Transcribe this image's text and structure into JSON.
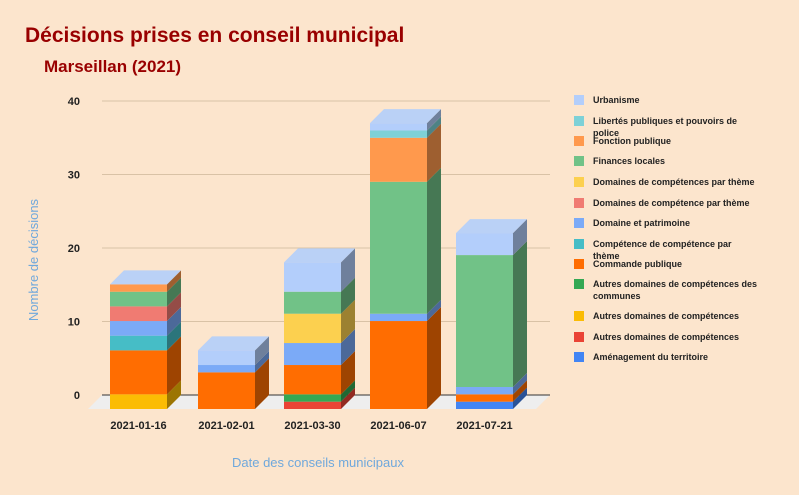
{
  "chart_data": {
    "type": "bar",
    "stacked": true,
    "three_d": true,
    "title": "Décisions prises en conseil municipal",
    "subtitle": "Marseillan (2021)",
    "xlabel": "Date des conseils municipaux",
    "ylabel": "Nombre de décisions",
    "ylim": [
      0,
      40
    ],
    "yticks": [
      "0",
      "10",
      "20",
      "30",
      "40"
    ],
    "grid": true,
    "legend_position": "right",
    "categories": [
      "2021-01-16",
      "2021-02-01",
      "2021-03-30",
      "2021-06-07",
      "2021-07-21"
    ],
    "series": [
      {
        "name": "Aménagement du territoire",
        "color": "#4285f4",
        "values": [
          0,
          0,
          0,
          0,
          1
        ]
      },
      {
        "name": "Autres domaines de compétences",
        "color": "#ea4335",
        "values": [
          0,
          0,
          1,
          0,
          0
        ]
      },
      {
        "name": "Autres domaines de compétences",
        "color": "#fbbc04",
        "values": [
          2,
          0,
          0,
          0,
          0
        ]
      },
      {
        "name": "Autres domaines de compétences des communes",
        "color": "#34a853",
        "values": [
          0,
          0,
          1,
          0,
          0
        ]
      },
      {
        "name": "Commande publique",
        "color": "#ff6d01",
        "values": [
          6,
          5,
          4,
          12,
          1
        ]
      },
      {
        "name": "Compétence de compétence par thème",
        "color": "#46bdc6",
        "values": [
          2,
          0,
          0,
          0,
          0
        ]
      },
      {
        "name": "Domaine et patrimoine",
        "color": "#7baaf7",
        "values": [
          2,
          1,
          3,
          1,
          1
        ]
      },
      {
        "name": "Domaines de compétence par thème",
        "color": "#f07b72",
        "values": [
          2,
          0,
          0,
          0,
          0
        ]
      },
      {
        "name": "Domaines de compétences par thème",
        "color": "#fcd04f",
        "values": [
          0,
          0,
          4,
          0,
          0
        ]
      },
      {
        "name": "Finances locales",
        "color": "#71c287",
        "values": [
          2,
          0,
          3,
          18,
          18
        ]
      },
      {
        "name": "Fonction publique",
        "color": "#ff994d",
        "values": [
          1,
          0,
          0,
          6,
          0
        ]
      },
      {
        "name": "Libertés publiques et pouvoirs de police",
        "color": "#7ed1d7",
        "values": [
          0,
          0,
          0,
          1,
          0
        ]
      },
      {
        "name": "Urbanisme",
        "color": "#b3cefb",
        "values": [
          0,
          2,
          4,
          1,
          3
        ]
      }
    ]
  }
}
